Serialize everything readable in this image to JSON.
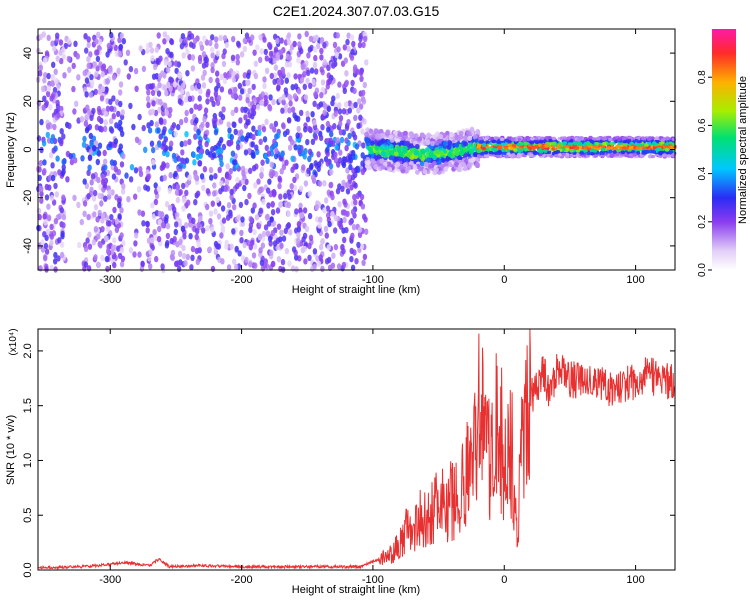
{
  "figure_title": "C2E1.2024.307.07.03.G15",
  "colors": {
    "snr_line": "#e83030",
    "spectrum_low": "#d9c6f2",
    "spectrum_mid": "#5a1ee6",
    "spectrum_peak": "#ff3030"
  },
  "chart_data": [
    {
      "type": "heatmap",
      "title": "",
      "xlabel": "Height of straight line (km)",
      "ylabel": "Frequency (Hz)",
      "xlim": [
        -355,
        130
      ],
      "ylim": [
        -50,
        50
      ],
      "x_ticks": [
        -300,
        -200,
        -100,
        0,
        100
      ],
      "y_ticks": [
        -40,
        -20,
        0,
        20,
        40
      ],
      "colorbar": {
        "label": "Normalized spectral amplitude",
        "range": [
          0,
          1
        ],
        "ticks": [
          "0.0",
          "0.2",
          "0.4",
          "0.6",
          "0.8"
        ],
        "colormap": "white-purple-blue-cyan-green-yellow-red-magenta"
      },
      "regions": [
        {
          "x_range": [
            -355,
            -105
          ],
          "freq_range": [
            -50,
            48
          ],
          "amplitude": "low, broadband scatter, concentrated near 0 Hz"
        },
        {
          "x_range": [
            -105,
            -20
          ],
          "freq_range": [
            -10,
            8
          ],
          "amplitude": "medium to high, signal centered near -1 Hz"
        },
        {
          "x_range": [
            -20,
            130
          ],
          "freq_range": [
            -3,
            4
          ],
          "amplitude": "high (0.8-1.0) narrow line at ~1 Hz"
        }
      ],
      "ridge": {
        "x": [
          -100,
          -80,
          -60,
          -40,
          -20,
          0,
          40,
          80,
          130
        ],
        "frequency": [
          0,
          -1,
          -2,
          -1,
          1,
          1,
          1,
          1,
          1
        ]
      }
    },
    {
      "type": "line",
      "title": "",
      "xlabel": "Height of straight line (km)",
      "ylabel": "SNR (10 * v/v)",
      "scale_note": "(x10⁴)",
      "xlim": [
        -355,
        130
      ],
      "ylim": [
        0,
        2.2
      ],
      "x_ticks": [
        -300,
        -200,
        -100,
        0,
        100
      ],
      "y_ticks": [
        "0.0",
        "0.5",
        "1.0",
        "1.5",
        "2.0"
      ],
      "series": [
        {
          "x": [
            -355,
            -320,
            -300,
            -290,
            -270,
            -263,
            -255,
            -230,
            -200,
            -150,
            -110,
            -95,
            -85,
            -75,
            -65,
            -55,
            -45,
            -35,
            -25,
            -20,
            -15,
            -10,
            -5,
            0,
            5,
            10,
            12,
            15,
            20,
            25,
            30,
            35,
            40,
            50,
            60,
            70,
            80,
            90,
            100,
            110,
            120,
            130
          ],
          "values": [
            0.02,
            0.03,
            0.05,
            0.07,
            0.04,
            0.1,
            0.03,
            0.04,
            0.03,
            0.03,
            0.03,
            0.1,
            0.15,
            0.35,
            0.45,
            0.55,
            0.6,
            0.65,
            1.0,
            1.4,
            1.3,
            0.9,
            1.5,
            1.0,
            1.2,
            0.3,
            1.0,
            1.2,
            1.55,
            1.7,
            1.8,
            1.6,
            1.85,
            1.75,
            1.7,
            1.75,
            1.65,
            1.7,
            1.7,
            1.8,
            1.7,
            1.75
          ]
        }
      ]
    }
  ]
}
